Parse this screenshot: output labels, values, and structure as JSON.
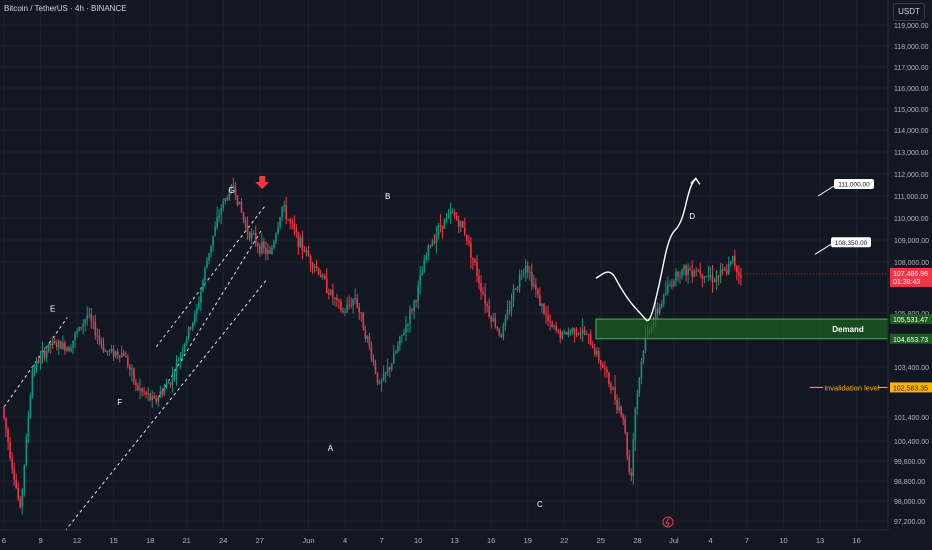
{
  "header": {
    "symbol_line": "Bitcoin / TetherUS · 4h · BINANCE"
  },
  "currency_button": "USDT",
  "colors": {
    "background": "#131722",
    "up": "#089981",
    "down": "#f23645",
    "demand_fill": "#1b5e20",
    "demand_border": "#4caf50",
    "arrow": "#f23645",
    "invalidation": "#ffb300",
    "grid": "#1e222d",
    "axis_text": "#b2b5be"
  },
  "chart_data": {
    "type": "candlestick",
    "title": "Bitcoin / TetherUS · 4h · BINANCE",
    "currency": "USDT",
    "y_axis": {
      "ticks": [
        119000,
        118000,
        117000,
        116000,
        115000,
        114000,
        113000,
        112000,
        111000,
        110000,
        109000,
        108000,
        105800,
        103400,
        101400,
        100400,
        99600,
        98800,
        98000,
        97200
      ],
      "tick_labels": [
        "119,000.00",
        "118,000.00",
        "117,000.00",
        "116,000.00",
        "115,000.00",
        "114,000.00",
        "113,000.00",
        "112,000.00",
        "111,000.00",
        "110,000.00",
        "109,000.00",
        "108,000.00",
        "105,800.00",
        "103,400.00",
        "101,400.00",
        "100,400.00",
        "99,600.00",
        "98,800.00",
        "98,000.00",
        "97,200.00"
      ],
      "ylim": [
        96800,
        119400
      ]
    },
    "x_axis": {
      "tick_labels": [
        "6",
        "9",
        "12",
        "15",
        "18",
        "21",
        "24",
        "27",
        "Jun",
        "4",
        "7",
        "10",
        "13",
        "16",
        "19",
        "22",
        "25",
        "28",
        "Jul",
        "4",
        "7",
        "10",
        "13",
        "16"
      ],
      "tick_day_index": [
        0,
        3,
        6,
        9,
        12,
        15,
        18,
        21,
        25,
        28,
        31,
        34,
        37,
        40,
        43,
        46,
        49,
        52,
        55,
        58,
        61,
        64,
        67,
        70
      ]
    },
    "price_path": [
      [
        0,
        101800
      ],
      [
        1.5,
        97600
      ],
      [
        2.5,
        103300
      ],
      [
        4,
        104400
      ],
      [
        5.5,
        104300
      ],
      [
        7,
        105700
      ],
      [
        8.5,
        104100
      ],
      [
        10,
        104000
      ],
      [
        11,
        102600
      ],
      [
        12.5,
        102000
      ],
      [
        14,
        103000
      ],
      [
        15,
        104500
      ],
      [
        16,
        105900
      ],
      [
        17,
        108500
      ],
      [
        18,
        110500
      ],
      [
        19,
        111500
      ],
      [
        20,
        109600
      ],
      [
        21,
        108800
      ],
      [
        22,
        108300
      ],
      [
        23,
        110500
      ],
      [
        24.5,
        108800
      ],
      [
        26,
        107600
      ],
      [
        27,
        106600
      ],
      [
        28,
        105800
      ],
      [
        29,
        106500
      ],
      [
        30,
        104600
      ],
      [
        31,
        102600
      ],
      [
        32,
        103600
      ],
      [
        33,
        105000
      ],
      [
        34,
        106500
      ],
      [
        35,
        108600
      ],
      [
        36,
        109700
      ],
      [
        37,
        110200
      ],
      [
        38,
        109400
      ],
      [
        39,
        107500
      ],
      [
        40,
        105800
      ],
      [
        41,
        104800
      ],
      [
        42,
        106700
      ],
      [
        43,
        108000
      ],
      [
        44,
        106500
      ],
      [
        45,
        105200
      ],
      [
        46,
        104800
      ],
      [
        47,
        105100
      ],
      [
        48,
        104800
      ],
      [
        49,
        103800
      ],
      [
        50,
        102600
      ],
      [
        51,
        101400
      ],
      [
        51.6,
        98700
      ],
      [
        52,
        101800
      ],
      [
        52.8,
        104700
      ],
      [
        53.5,
        105500
      ],
      [
        54.5,
        106700
      ],
      [
        55.5,
        107600
      ],
      [
        57,
        107700
      ],
      [
        58.5,
        107300
      ],
      [
        59.5,
        107600
      ],
      [
        60,
        108100
      ],
      [
        60.5,
        107500
      ]
    ],
    "wave_labels": [
      {
        "label": "E",
        "day": 4,
        "price": 106000
      },
      {
        "label": "F",
        "day": 9.5,
        "price": 102000
      },
      {
        "label": "G",
        "day": 18.7,
        "price": 111600
      },
      {
        "label": "A",
        "day": 26.8,
        "price": 99800
      },
      {
        "label": "B",
        "day": 31.5,
        "price": 111000
      },
      {
        "label": "C",
        "day": 44,
        "price": 97600
      },
      {
        "label": "D",
        "day": 56.5,
        "price": 110100
      }
    ],
    "annotations": {
      "demand_zone": {
        "label": "Demand",
        "top": 105531.47,
        "bottom": 104653.73,
        "top_label": "105,531.47",
        "bottom_label": "104,653.73"
      },
      "invalidation": {
        "label": "invalidation level",
        "price": 102583.35,
        "price_label": "102,583.35"
      },
      "targets": [
        {
          "label": "111,000.00",
          "price": 111000
        },
        {
          "label": "108,350.00",
          "price": 108350
        }
      ],
      "current_price": {
        "price": 107486.96,
        "label": "107,486.96",
        "countdown": "01:39:43"
      },
      "projection_path": [
        [
          48.6,
          107300
        ],
        [
          49.8,
          107700
        ],
        [
          50.6,
          106900
        ],
        [
          51.5,
          106200
        ],
        [
          52.4,
          105700
        ],
        [
          53.0,
          105300
        ],
        [
          53.8,
          107000
        ],
        [
          54.6,
          109200
        ],
        [
          55.6,
          109700
        ],
        [
          56.3,
          111400
        ],
        [
          56.8,
          111800
        ]
      ]
    }
  }
}
